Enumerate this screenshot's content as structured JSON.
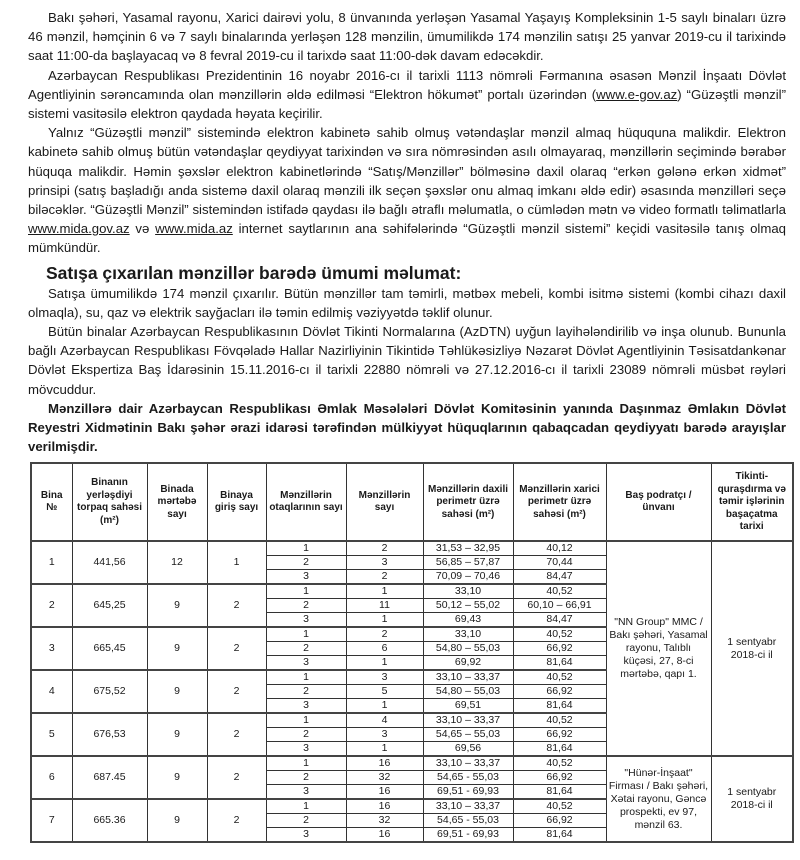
{
  "paragraphs": {
    "p1": "Bakı şəhəri, Yasamal rayonu, Xarici dairəvi yolu, 8 ünvanında yerləşən Yasamal Yaşayış Kompleksinin 1-5 saylı binaları üzrə 46 mənzil, həmçinin 6 və 7 saylı binalarında yerləşən 128 mənzilin, ümumilikdə 174 mənzilin satışı 25 yanvar 2019-cu il tarixində saat 11:00-da başlayacaq və 8 fevral 2019-cu il tarixdə saat 11:00-dək davam edəcəkdir.",
    "p2_a": "Azərbaycan Respublikası Prezidentinin 16 noyabr 2016-cı il tarixli 1113 nömrəli Fərmanına əsasən Mənzil İnşaatı Dövlət Agentliyinin sərəncamında olan mənzillərin əldə edilməsi “Elektron hökumət” portalı üzərindən (",
    "p2_link": "www.e-gov.az",
    "p2_b": ") “Güzəştli mənzil” sistemi vasitəsilə elektron qaydada həyata keçirilir.",
    "p3_a": "Yalnız “Güzəştli mənzil” sistemində elektron kabinetə sahib olmuş vətəndaşlar mənzil almaq hüququna malikdir. Elektron kabinetə sahib olmuş bütün vətəndaşlar qeydiyyat tarixindən və sıra nömrəsindən asılı olmayaraq, mənzillərin seçimində bərabər hüquqa malikdir. Həmin şəxslər elektron kabinetlərində “Satış/Mənzillər” bölməsinə daxil olaraq “erkən gələnə erkən xidmət” prinsipi (satış başladığı anda sistemə daxil olaraq mənzili ilk seçən şəxslər onu almaq imkanı əldə edir) əsasında mənzilləri seçə biləcəklər. “Güzəştli Mənzil” sistemindən istifadə qaydası ilə bağlı ətraflı məlumatla, o cümlədən mətn və video formatlı təlimatlarla ",
    "p3_link1": "www.mida.gov.az",
    "p3_mid": " və ",
    "p3_link2": "www.mida.az",
    "p3_b": " internet saytlarının ana səhifələrində “Güzəştli mənzil sistemi” keçidi vasitəsilə tanış olmaq mümkündür.",
    "heading": "Satışa çıxarılan mənzillər barədə ümumi məlumat:",
    "p4": "Satışa ümumilikdə 174 mənzil çıxarılır. Bütün mənzillər tam təmirli, mətbəx mebeli, kombi isitmə sistemi (kombi cihazı daxil olmaqla), su, qaz və elektrik sayğacları ilə təmin edilmiş vəziyyətdə təklif olunur.",
    "p5": "Bütün binalar Azərbaycan Respublikasının Dövlət Tikinti Normalarına (AzDTN) uyğun layihələndirilib və inşa olunub. Bununla bağlı Azərbaycan Respublikası Fövqəladə Hallar Nazirliyinin Tikintidə Təhlükəsizliyə Nəzarət Dövlət Agentliyinin Təsisatdankənar Dövlət Ekspertiza Baş İdarəsinin 15.11.2016-cı il tarixli 22880 nömrəli və 27.12.2016-cı il tarixli 23089 nömrəli müsbət rəyləri mövcuddur.",
    "p6": "Mənzillərə dair Azərbaycan Respublikası Əmlak Məsələləri Dövlət Komitəsinin yanında Daşınmaz Əmlakın Dövlət Reyestri Xidmətinin Bakı şəhər ərazi idarəsi tərəfindən mülkiyyət hüquqlarının qabaqcadan qeydiyyatı barədə arayışlar verilmişdir."
  },
  "table": {
    "headers": [
      "Bina №",
      "Binanın yerləşdiyi torpaq sahəsi (m²)",
      "Binada mərtəbə sayı",
      "Binaya giriş sayı",
      "Mənzillərin otaqlarının sayı",
      "Mənzillərin sayı",
      "Mənzillərin daxili perimetr üzrə sahəsi (m²)",
      "Mənzillərin xarici perimetr üzrə sahəsi (m²)",
      "Baş podratçı / ünvanı",
      "Tikinti-quraşdırma və təmir işlərinin başaçatma tarixi"
    ],
    "groups": [
      {
        "contractor": "\"NN Group\" MMC / Bakı şəhəri, Yasamal rayonu, Talıblı küçəsi, 27, 8-ci mərtəbə, qapı 1.",
        "completion": "1 sentyabr 2018-ci il",
        "buildings": [
          {
            "no": "1",
            "land": "441,56",
            "floors": "12",
            "entrances": "1",
            "rows": [
              [
                "1",
                "2",
                "31,53 – 32,95",
                "40,12"
              ],
              [
                "2",
                "3",
                "56,85 – 57,87",
                "70,44"
              ],
              [
                "3",
                "2",
                "70,09 – 70,46",
                "84,47"
              ]
            ]
          },
          {
            "no": "2",
            "land": "645,25",
            "floors": "9",
            "entrances": "2",
            "rows": [
              [
                "1",
                "1",
                "33,10",
                "40,52"
              ],
              [
                "2",
                "11",
                "50,12 – 55,02",
                "60,10 – 66,91"
              ],
              [
                "3",
                "1",
                "69,43",
                "84,47"
              ]
            ]
          },
          {
            "no": "3",
            "land": "665,45",
            "floors": "9",
            "entrances": "2",
            "rows": [
              [
                "1",
                "2",
                "33,10",
                "40,52"
              ],
              [
                "2",
                "6",
                "54,80 – 55,03",
                "66,92"
              ],
              [
                "3",
                "1",
                "69,92",
                "81,64"
              ]
            ]
          },
          {
            "no": "4",
            "land": "675,52",
            "floors": "9",
            "entrances": "2",
            "rows": [
              [
                "1",
                "3",
                "33,10 – 33,37",
                "40,52"
              ],
              [
                "2",
                "5",
                "54,80 – 55,03",
                "66,92"
              ],
              [
                "3",
                "1",
                "69,51",
                "81,64"
              ]
            ]
          },
          {
            "no": "5",
            "land": "676,53",
            "floors": "9",
            "entrances": "2",
            "rows": [
              [
                "1",
                "4",
                "33,10 – 33,37",
                "40,52"
              ],
              [
                "2",
                "3",
                "54,65 – 55,03",
                "66,92"
              ],
              [
                "3",
                "1",
                "69,56",
                "81,64"
              ]
            ]
          }
        ]
      },
      {
        "contractor": "\"Hünər-İnşaat\" Firması / Bakı şəhəri, Xətai rayonu, Gəncə prospekti, ev 97, mənzil 63.",
        "completion": "1 sentyabr 2018-ci il",
        "buildings": [
          {
            "no": "6",
            "land": "687.45",
            "floors": "9",
            "entrances": "2",
            "rows": [
              [
                "1",
                "16",
                "33,10 – 33,37",
                "40,52"
              ],
              [
                "2",
                "32",
                "54,65 - 55,03",
                "66,92"
              ],
              [
                "3",
                "16",
                "69,51 - 69,93",
                "81,64"
              ]
            ]
          },
          {
            "no": "7",
            "land": "665.36",
            "floors": "9",
            "entrances": "2",
            "rows": [
              [
                "1",
                "16",
                "33,10 – 33,37",
                "40,52"
              ],
              [
                "2",
                "32",
                "54,65 - 55,03",
                "66,92"
              ],
              [
                "3",
                "16",
                "69,51 - 69,93",
                "81,64"
              ]
            ]
          }
        ]
      }
    ]
  }
}
